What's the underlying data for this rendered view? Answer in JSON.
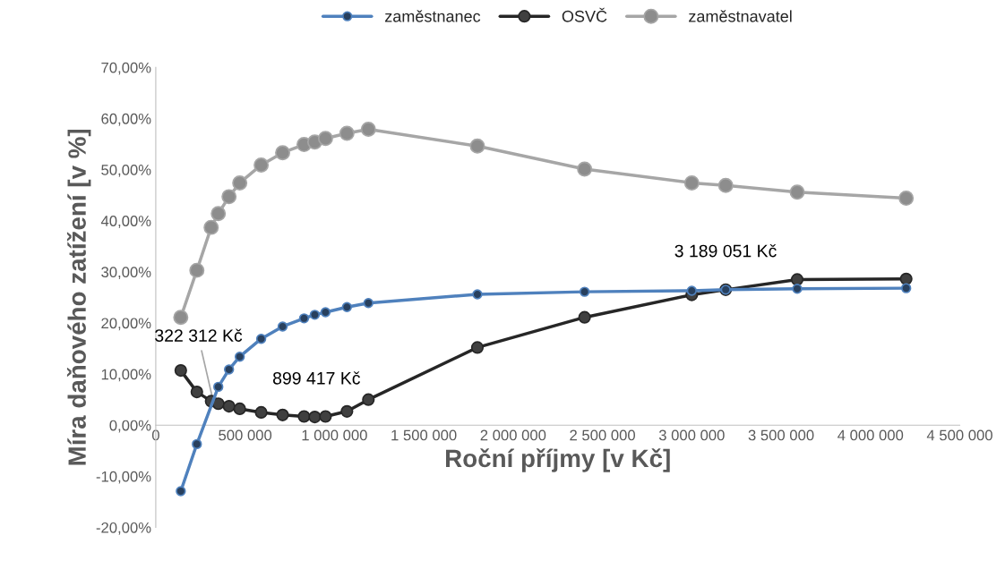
{
  "chart_data": {
    "type": "line",
    "xlabel": "Roční příjmy [v Kč]",
    "ylabel": "Míra daňového zatížení [v %]",
    "x": [
      140000,
      230000,
      310000,
      350000,
      410000,
      470000,
      590000,
      710000,
      830000,
      890000,
      950000,
      1070000,
      1190000,
      1800000,
      2400000,
      3000000,
      3190000,
      3590000,
      4200000
    ],
    "series": [
      {
        "name": "zaměstnanec",
        "color": "#4f81bd",
        "values": [
          -12.9,
          -3.7,
          null,
          7.5,
          10.9,
          13.4,
          16.9,
          19.3,
          20.9,
          21.6,
          22.1,
          23.1,
          23.9,
          25.6,
          26.1,
          26.3,
          26.5,
          26.7,
          26.8
        ]
      },
      {
        "name": "OSVČ",
        "color": "#262626",
        "values": [
          10.7,
          6.5,
          4.7,
          4.2,
          3.7,
          3.2,
          2.5,
          2.0,
          1.7,
          1.6,
          1.7,
          2.7,
          5.0,
          15.2,
          21.1,
          25.5,
          26.5,
          28.5,
          28.6
        ]
      },
      {
        "name": "zaměstnavatel",
        "color": "#a6a6a6",
        "values": [
          21.1,
          30.3,
          38.7,
          41.4,
          44.7,
          47.4,
          50.9,
          53.3,
          54.9,
          55.4,
          56.1,
          57.1,
          57.9,
          54.6,
          50.1,
          47.4,
          46.9,
          45.6,
          44.4
        ]
      }
    ],
    "xlim": [
      0,
      4500000
    ],
    "xticks": [
      0,
      {
        "value": 500000,
        "label": "500 000"
      },
      {
        "value": 1000000,
        "label": "1 000 000"
      },
      {
        "value": 1500000,
        "label": "1 500 000"
      },
      {
        "value": 2000000,
        "label": "2 000 000"
      },
      {
        "value": 2500000,
        "label": "2 500 000"
      },
      {
        "value": 3000000,
        "label": "3 000 000"
      },
      {
        "value": 3500000,
        "label": "3 500 000"
      },
      {
        "value": 4000000,
        "label": "4 000 000"
      },
      {
        "value": 4500000,
        "label": "4 500 000"
      }
    ],
    "ylim": [
      -20,
      70
    ],
    "yticks": [
      {
        "value": -20,
        "label": "-20,00%"
      },
      {
        "value": -10,
        "label": "-10,00%"
      },
      {
        "value": 0,
        "label": "0,00%"
      },
      {
        "value": 10,
        "label": "10,00%"
      },
      {
        "value": 20,
        "label": "20,00%"
      },
      {
        "value": 30,
        "label": "30,00%"
      },
      {
        "value": 40,
        "label": "40,00%"
      },
      {
        "value": 50,
        "label": "50,00%"
      },
      {
        "value": 60,
        "label": "60,00%"
      },
      {
        "value": 70,
        "label": "70,00%"
      }
    ],
    "annotations": [
      {
        "text": "322 312 Kč",
        "x": 322312,
        "y": 4.6
      },
      {
        "text": "899 417 Kč",
        "x": 899417,
        "y": 1.6
      },
      {
        "text": "3 189 051 Kč",
        "x": 3189051,
        "y": 26.5
      }
    ],
    "marker": "circle",
    "line_style": "solid",
    "grid": false,
    "legend": "top"
  }
}
